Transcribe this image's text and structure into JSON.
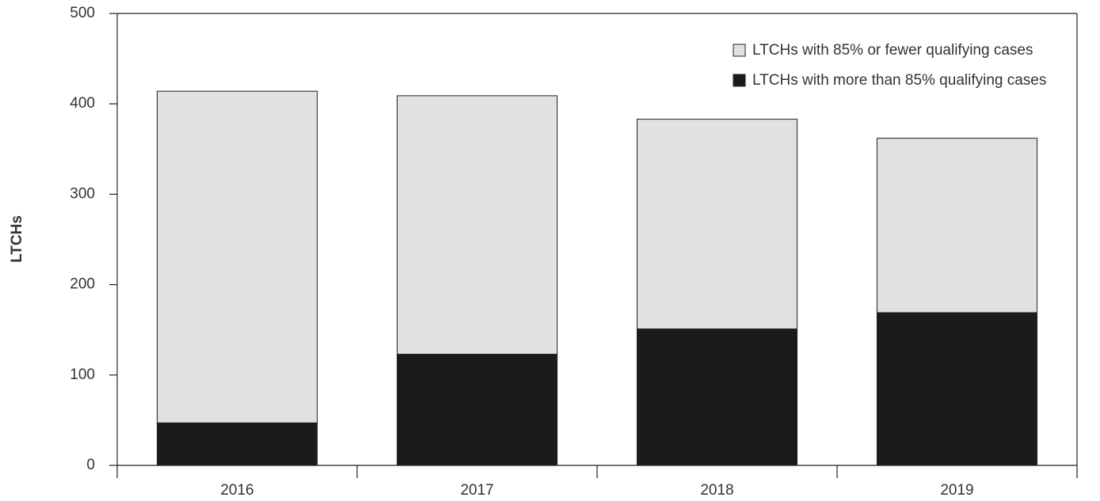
{
  "chart_data": {
    "type": "stacked-bar",
    "y_label": "LTCHs",
    "categories": [
      "2016",
      "2017",
      "2018",
      "2019"
    ],
    "series": [
      {
        "name": "LTCHs with 85% or fewer qualifying cases",
        "color": "#e0e1e3",
        "values": [
          367,
          286,
          232,
          193
        ]
      },
      {
        "name": "LTCHs with more than 85% qualifying cases",
        "color": "#1c1a1a",
        "values": [
          47,
          123,
          151,
          169
        ]
      }
    ],
    "ylim": [
      0,
      500
    ],
    "yticks": [
      0,
      100,
      200,
      300,
      400,
      500
    ],
    "legend": "top-right"
  }
}
